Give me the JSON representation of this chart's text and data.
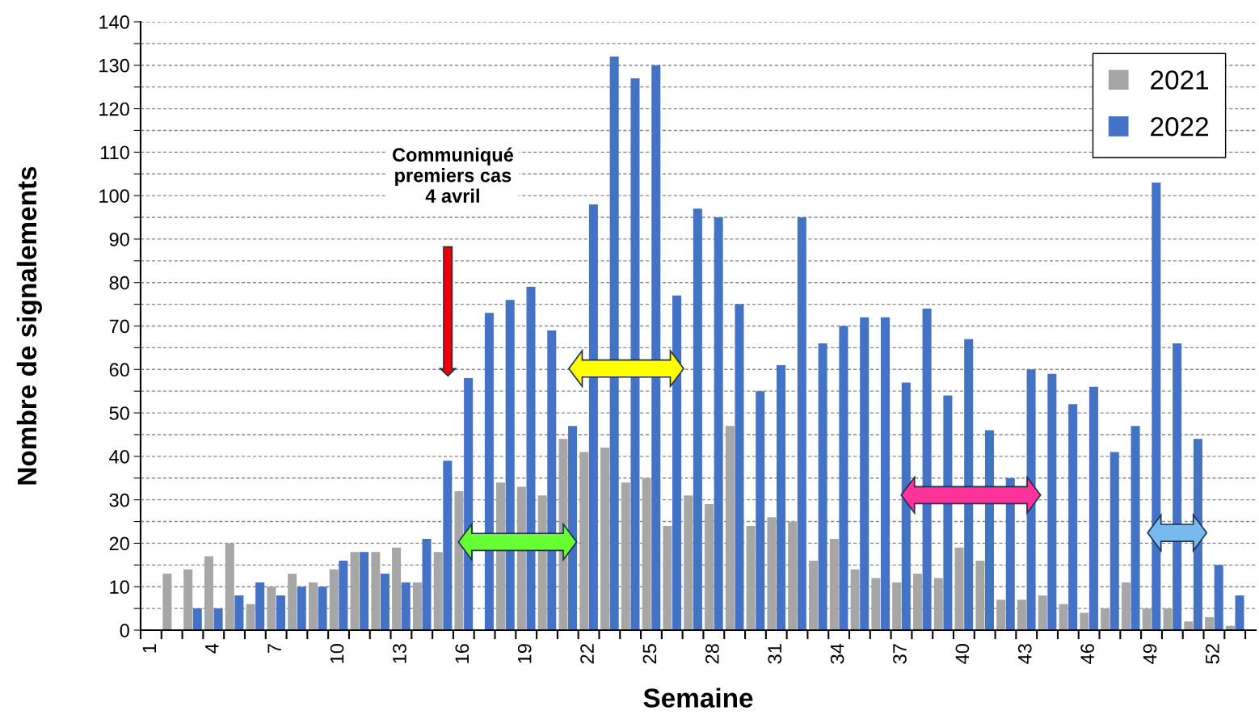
{
  "chart_data": {
    "type": "bar",
    "xlabel": "Semaine",
    "ylabel": "Nombre de signalements",
    "categories": [
      "1",
      null,
      null,
      "4",
      null,
      null,
      "7",
      null,
      null,
      "10",
      null,
      null,
      "13",
      null,
      null,
      "16",
      null,
      null,
      "19",
      null,
      null,
      "22",
      null,
      null,
      "25",
      null,
      null,
      "28",
      null,
      null,
      "31",
      null,
      null,
      "34",
      null,
      null,
      "37",
      null,
      null,
      "40",
      null,
      null,
      "43",
      null,
      null,
      "46",
      null,
      null,
      "49",
      null,
      null,
      "52",
      null
    ],
    "series": [
      {
        "name": "2021",
        "color": "#a6a6a6",
        "values": [
          null,
          13,
          14,
          17,
          20,
          6,
          10,
          13,
          11,
          14,
          18,
          18,
          19,
          11,
          18,
          32,
          null,
          34,
          33,
          31,
          44,
          41,
          42,
          34,
          35,
          24,
          31,
          29,
          47,
          24,
          26,
          25,
          16,
          21,
          14,
          12,
          11,
          13,
          12,
          19,
          16,
          7,
          7,
          8,
          6,
          4,
          5,
          11,
          5,
          5,
          2,
          3,
          1
        ]
      },
      {
        "name": "2022",
        "color": "#4472c4",
        "values": [
          null,
          null,
          5,
          5,
          8,
          11,
          8,
          10,
          10,
          16,
          18,
          13,
          11,
          21,
          39,
          58,
          73,
          76,
          79,
          69,
          47,
          98,
          132,
          127,
          130,
          77,
          97,
          95,
          75,
          55,
          61,
          95,
          66,
          70,
          72,
          72,
          57,
          74,
          54,
          67,
          46,
          35,
          60,
          59,
          52,
          56,
          41,
          47,
          103,
          66,
          44,
          15,
          8
        ]
      }
    ],
    "ylim": [
      0,
      140
    ],
    "yticks": [
      0,
      {
        "value": 5,
        "label": null
      },
      10,
      {
        "value": 15,
        "label": null
      },
      20,
      {
        "value": 25,
        "label": null
      },
      30,
      {
        "value": 35,
        "label": null
      },
      40,
      {
        "value": 45,
        "label": null
      },
      50,
      {
        "value": 55,
        "label": null
      },
      60,
      {
        "value": 65,
        "label": null
      },
      70,
      {
        "value": 75,
        "label": null
      },
      80,
      {
        "value": 85,
        "label": null
      },
      90,
      {
        "value": 95,
        "label": null
      },
      100,
      {
        "value": 105,
        "label": null
      },
      110,
      {
        "value": 115,
        "label": null
      },
      120,
      {
        "value": 125,
        "label": null
      },
      130,
      {
        "value": 135,
        "label": null
      },
      140
    ],
    "grid": "y",
    "legend": "top right",
    "annotations": [
      "Communiqué\npremiers cas\n4 avril"
    ]
  }
}
